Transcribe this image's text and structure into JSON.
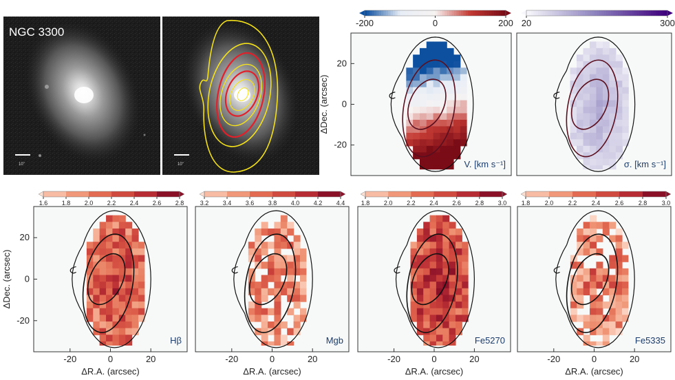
{
  "figure": {
    "galaxy_name": "NGC 3300",
    "scale_bar_label": "10\""
  },
  "chart_data": [
    {
      "type": "heatmap",
      "quantity": "V",
      "panel_label": "V. [km s⁻¹]",
      "colorbar": {
        "min": -200,
        "max": 200,
        "ticks": [
          -200,
          0,
          200
        ],
        "tick_labels": [
          "-200",
          "0",
          "200"
        ],
        "colors": [
          "#0e50a0",
          "#e8eef6",
          "#f7f3f2",
          "#c43a33",
          "#7a0c17"
        ]
      },
      "xlim": [
        -38,
        38
      ],
      "ylim": [
        -35,
        35
      ],
      "ylabel": "ΔDec. (arcsec)",
      "ytick_labels": [
        "20",
        "0",
        "-20"
      ],
      "yticks": [
        20,
        0,
        -20
      ]
    },
    {
      "type": "heatmap",
      "quantity": "sigma",
      "panel_label": "σ. [km s⁻¹]",
      "colorbar": {
        "min": 20,
        "max": 300,
        "ticks": [
          20,
          300
        ],
        "tick_labels": [
          "20",
          "300"
        ],
        "colors": [
          "#f7f7fb",
          "#8b80bd",
          "#3f007d"
        ]
      },
      "xlim": [
        -38,
        38
      ],
      "ylim": [
        -35,
        35
      ]
    },
    {
      "type": "heatmap",
      "quantity": "Hbeta",
      "panel_label": "Hβ",
      "colorbar": {
        "min": 1.6,
        "max": 2.8,
        "ticks": [
          1.6,
          1.8,
          2.0,
          2.2,
          2.4,
          2.6,
          2.8
        ],
        "tick_labels": [
          "1.6",
          "1.8",
          "2.0",
          "2.2",
          "2.4",
          "2.6",
          "2.8"
        ],
        "colors": [
          "#fde0d2",
          "#f8bca5",
          "#f09879",
          "#e26b52",
          "#d14a3f",
          "#b72c33",
          "#8a1028"
        ]
      },
      "xlim": [
        -38,
        38
      ],
      "ylim": [
        -35,
        35
      ],
      "xlabel": "ΔR.A. (arcsec)",
      "ylabel": "ΔDec. (arcsec)",
      "xtick_labels": [
        "-20",
        "0",
        "20"
      ],
      "xticks": [
        -20,
        0,
        20
      ],
      "ytick_labels": [
        "20",
        "0",
        "-20"
      ],
      "yticks": [
        20,
        0,
        -20
      ]
    },
    {
      "type": "heatmap",
      "quantity": "Mgb",
      "panel_label": "Mgb",
      "colorbar": {
        "min": 3.2,
        "max": 4.4,
        "ticks": [
          3.2,
          3.4,
          3.6,
          3.8,
          4.0,
          4.2,
          4.4
        ],
        "tick_labels": [
          "3.2",
          "3.4",
          "3.6",
          "3.8",
          "4.0",
          "4.2",
          "4.4"
        ],
        "colors": [
          "#fde0d2",
          "#f8bca5",
          "#f09879",
          "#e26b52",
          "#d14a3f",
          "#b72c33",
          "#8a1028"
        ]
      },
      "xlim": [
        -38,
        38
      ],
      "ylim": [
        -35,
        35
      ],
      "xlabel": "ΔR.A. (arcsec)",
      "xtick_labels": [
        "-20",
        "0",
        "20"
      ],
      "xticks": [
        -20,
        0,
        20
      ]
    },
    {
      "type": "heatmap",
      "quantity": "Fe5270",
      "panel_label": "Fe5270",
      "colorbar": {
        "min": 1.8,
        "max": 3.0,
        "ticks": [
          1.8,
          2.0,
          2.2,
          2.4,
          2.6,
          2.8,
          3.0
        ],
        "tick_labels": [
          "1.8",
          "2.0",
          "2.2",
          "2.4",
          "2.6",
          "2.8",
          "3.0"
        ],
        "colors": [
          "#fde0d2",
          "#f8bca5",
          "#f09879",
          "#e26b52",
          "#d14a3f",
          "#b72c33",
          "#8a1028"
        ]
      },
      "xlim": [
        -38,
        38
      ],
      "ylim": [
        -35,
        35
      ],
      "xlabel": "ΔR.A. (arcsec)",
      "xtick_labels": [
        "-20",
        "0",
        "20"
      ],
      "xticks": [
        -20,
        0,
        20
      ]
    },
    {
      "type": "heatmap",
      "quantity": "Fe5335",
      "panel_label": "Fe5335",
      "colorbar": {
        "min": 1.8,
        "max": 3.0,
        "ticks": [
          1.8,
          2.0,
          2.2,
          2.4,
          2.6,
          2.8,
          3.0
        ],
        "tick_labels": [
          "1.8",
          "2.0",
          "2.2",
          "2.4",
          "2.6",
          "2.8",
          "3.0"
        ],
        "colors": [
          "#fde0d2",
          "#f8bca5",
          "#f09879",
          "#e26b52",
          "#d14a3f",
          "#b72c33",
          "#8a1028"
        ]
      },
      "xlim": [
        -38,
        38
      ],
      "ylim": [
        -35,
        35
      ],
      "xlabel": "ΔR.A. (arcsec)",
      "xtick_labels": [
        "-20",
        "0",
        "20"
      ],
      "xticks": [
        -20,
        0,
        20
      ]
    }
  ]
}
